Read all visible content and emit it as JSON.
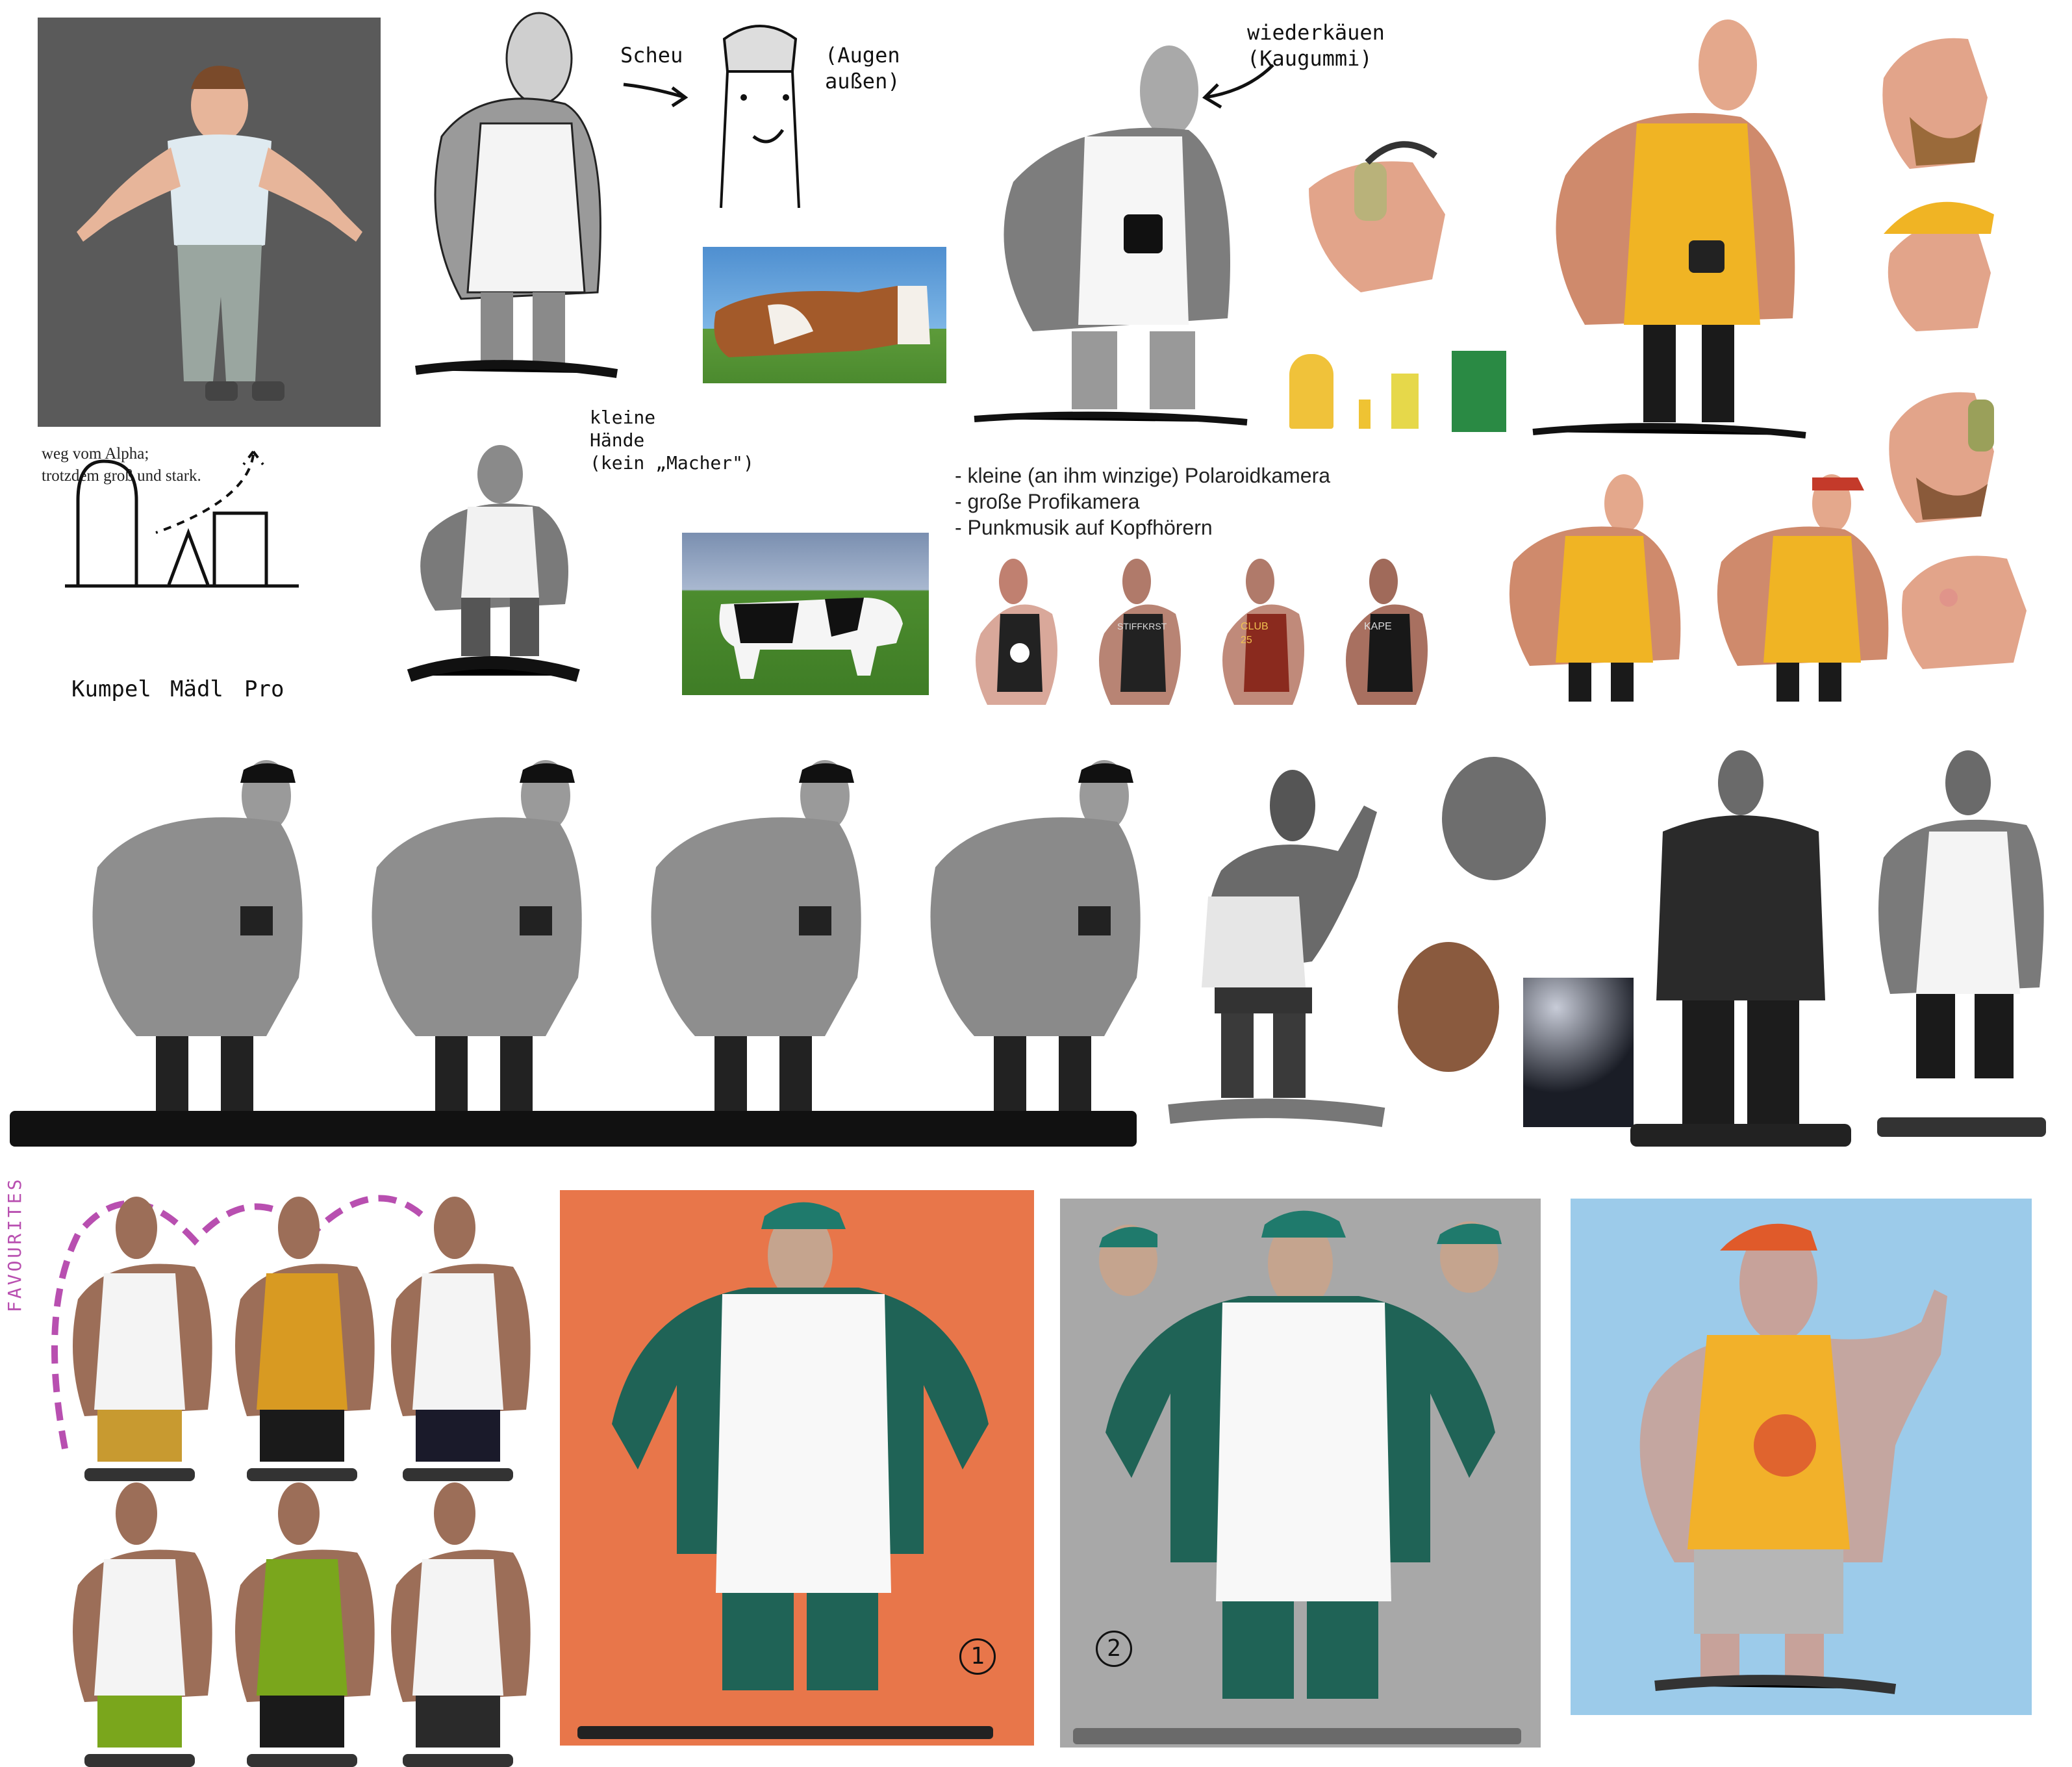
{
  "sheet": {
    "notes": {
      "alpha_note": "weg vom Alpha;\ntrotzdem groß und stark.",
      "kumpel": "Kumpel",
      "madl": "Mädl",
      "pro": "Pro",
      "scheu": "Scheu",
      "augen": "(Augen\naußen)",
      "kleine_haende": "kleine\nHände\n(kein „Macher\")",
      "wiederkaeuen": "wiederkäuen\n(Kaugummi)",
      "favourites": "FAVOURITES",
      "num1": "1",
      "num2": "2"
    },
    "bullets": [
      "- kleine (an ihm winzige) Polaroidkamera",
      "- große Profikamera",
      "- Punkmusik auf Kopfhörern"
    ],
    "shirt_prints": [
      "STIFFKRST",
      "CLUB\n25",
      "KAPE"
    ],
    "colors": {
      "render_bg": "#5a5a5a",
      "orange_panel": "#e8764a",
      "grey_panel": "#a8a8a8",
      "blue_panel": "#9ccbea",
      "teal_jacket": "#1f6356",
      "yellow_shirt": "#f0b424",
      "green_shirt": "#7aa61c",
      "skin": "#9c6e58",
      "favourites_pink": "#b84fb0"
    }
  }
}
